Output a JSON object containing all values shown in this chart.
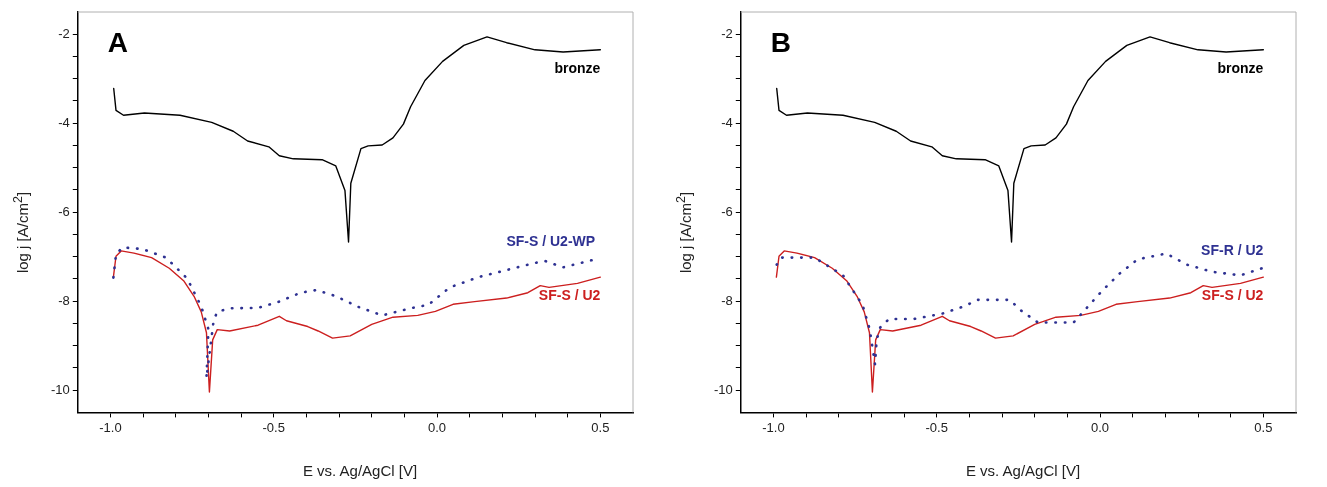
{
  "chart_data": [
    {
      "type": "line",
      "title": "A",
      "xlabel": "E vs. Ag/AgCl [V]",
      "ylabel": "log j [A/cm$^{2}$]",
      "grid": false,
      "legend": false,
      "marker": "none",
      "xlim": [
        -1.1,
        0.6
      ],
      "ylim": [
        -10.5,
        -1.5
      ],
      "xticks": [
        {
          "value": -1.0,
          "label": "-1.0"
        },
        {
          "value": -0.9,
          "label": null
        },
        {
          "value": -0.8,
          "label": null
        },
        {
          "value": -0.7,
          "label": null
        },
        {
          "value": -0.6,
          "label": null
        },
        {
          "value": -0.5,
          "label": "-0.5"
        },
        {
          "value": -0.4,
          "label": null
        },
        {
          "value": -0.3,
          "label": null
        },
        {
          "value": -0.2,
          "label": null
        },
        {
          "value": -0.1,
          "label": null
        },
        {
          "value": 0,
          "label": "0.0"
        },
        {
          "value": 0.1,
          "label": null
        },
        {
          "value": 0.2,
          "label": null
        },
        {
          "value": 0.3,
          "label": null
        },
        {
          "value": 0.4,
          "label": null
        },
        {
          "value": 0.5,
          "label": "0.5"
        }
      ],
      "yticks": [
        -10,
        {
          "value": -9.5,
          "label": null
        },
        {
          "value": -9,
          "label": null
        },
        {
          "value": -8.5,
          "label": null
        },
        -8,
        {
          "value": -7.5,
          "label": null
        },
        {
          "value": -7,
          "label": null
        },
        {
          "value": -6.5,
          "label": null
        },
        -6,
        {
          "value": -5.5,
          "label": null
        },
        {
          "value": -5,
          "label": null
        },
        {
          "value": -4.5,
          "label": null
        },
        -4,
        {
          "value": -3.5,
          "label": null
        },
        {
          "value": -3,
          "label": null
        },
        {
          "value": -2.5,
          "label": null
        },
        -2
      ],
      "series": [
        {
          "name": "bronze",
          "color": "#000000",
          "line_style": "solid",
          "x": [
            -0.99,
            -0.983,
            -0.96,
            -0.896,
            -0.787,
            -0.69,
            -0.624,
            -0.58,
            -0.515,
            -0.483,
            -0.44,
            -0.352,
            -0.31,
            -0.282,
            -0.271,
            -0.264,
            -0.233,
            -0.211,
            -0.168,
            -0.135,
            -0.103,
            -0.081,
            -0.037,
            0.017,
            0.082,
            0.153,
            0.213,
            0.3,
            0.386,
            0.5
          ],
          "values": [
            -3.22,
            -3.71,
            -3.82,
            -3.77,
            -3.82,
            -3.98,
            -4.18,
            -4.4,
            -4.53,
            -4.73,
            -4.8,
            -4.82,
            -4.96,
            -5.51,
            -6.67,
            -5.35,
            -4.57,
            -4.51,
            -4.49,
            -4.33,
            -4.02,
            -3.63,
            -3.04,
            -2.61,
            -2.25,
            -2.06,
            -2.19,
            -2.35,
            -2.4,
            -2.35
          ]
        },
        {
          "name": "SF-S / U2-WP",
          "color": "#2e3192",
          "line_style": "dotted",
          "x": [
            -0.991,
            -0.983,
            -0.963,
            -0.901,
            -0.83,
            -0.765,
            -0.722,
            -0.7,
            -0.706,
            -0.684,
            -0.673,
            -0.635,
            -0.548,
            -0.483,
            -0.418,
            -0.369,
            -0.309,
            -0.244,
            -0.168,
            -0.081,
            -0.026,
            0.039,
            0.126,
            0.213,
            0.3,
            0.332,
            0.386,
            0.484
          ],
          "values": [
            -7.47,
            -6.95,
            -6.79,
            -6.83,
            -7.02,
            -7.49,
            -8.12,
            -8.63,
            -9.73,
            -8.43,
            -8.24,
            -8.16,
            -8.15,
            -8.01,
            -7.81,
            -7.75,
            -7.89,
            -8.12,
            -8.32,
            -8.16,
            -8.08,
            -7.69,
            -7.46,
            -7.3,
            -7.14,
            -7.1,
            -7.24,
            -7.06
          ]
        },
        {
          "name": "SF-S / U2",
          "color": "#cc1f1f",
          "line_style": "solid",
          "x": [
            -0.991,
            -0.983,
            -0.967,
            -0.928,
            -0.874,
            -0.82,
            -0.776,
            -0.744,
            -0.722,
            -0.706,
            -0.697,
            -0.687,
            -0.673,
            -0.635,
            -0.548,
            -0.483,
            -0.461,
            -0.396,
            -0.364,
            -0.32,
            -0.266,
            -0.2,
            -0.135,
            -0.059,
            -0.005,
            0.049,
            0.115,
            0.213,
            0.278,
            0.316,
            0.343,
            0.43,
            0.5
          ],
          "values": [
            -7.46,
            -6.99,
            -6.87,
            -6.92,
            -7.02,
            -7.26,
            -7.54,
            -7.89,
            -8.24,
            -8.71,
            -10.04,
            -8.87,
            -8.64,
            -8.67,
            -8.54,
            -8.34,
            -8.44,
            -8.57,
            -8.67,
            -8.83,
            -8.78,
            -8.52,
            -8.36,
            -8.32,
            -8.23,
            -8.07,
            -8.01,
            -7.93,
            -7.81,
            -7.65,
            -7.69,
            -7.6,
            -7.46
          ]
        }
      ]
    },
    {
      "type": "line",
      "title": "B",
      "xlabel": "E vs. Ag/AgCl [V]",
      "ylabel": "log j [A/cm$^{2}$]",
      "grid": false,
      "legend": false,
      "marker": "none",
      "xlim": [
        -1.1,
        0.6
      ],
      "ylim": [
        -10.5,
        -1.5
      ],
      "xticks": [
        {
          "value": -1.0,
          "label": "-1.0"
        },
        {
          "value": -0.9,
          "label": null
        },
        {
          "value": -0.8,
          "label": null
        },
        {
          "value": -0.7,
          "label": null
        },
        {
          "value": -0.6,
          "label": null
        },
        {
          "value": -0.5,
          "label": "-0.5"
        },
        {
          "value": -0.4,
          "label": null
        },
        {
          "value": -0.3,
          "label": null
        },
        {
          "value": -0.2,
          "label": null
        },
        {
          "value": -0.1,
          "label": null
        },
        {
          "value": 0,
          "label": "0.0"
        },
        {
          "value": 0.1,
          "label": null
        },
        {
          "value": 0.2,
          "label": null
        },
        {
          "value": 0.3,
          "label": null
        },
        {
          "value": 0.4,
          "label": null
        },
        {
          "value": 0.5,
          "label": "0.5"
        }
      ],
      "yticks": [
        -10,
        {
          "value": -9.5,
          "label": null
        },
        {
          "value": -9,
          "label": null
        },
        {
          "value": -8.5,
          "label": null
        },
        -8,
        {
          "value": -7.5,
          "label": null
        },
        {
          "value": -7,
          "label": null
        },
        {
          "value": -6.5,
          "label": null
        },
        -6,
        {
          "value": -5.5,
          "label": null
        },
        {
          "value": -5,
          "label": null
        },
        {
          "value": -4.5,
          "label": null
        },
        -4,
        {
          "value": -3.5,
          "label": null
        },
        {
          "value": -3,
          "label": null
        },
        {
          "value": -2.5,
          "label": null
        },
        -2
      ],
      "series": [
        {
          "name": "bronze",
          "color": "#000000",
          "line_style": "solid",
          "x": [
            -0.99,
            -0.983,
            -0.96,
            -0.896,
            -0.787,
            -0.69,
            -0.624,
            -0.58,
            -0.515,
            -0.483,
            -0.44,
            -0.352,
            -0.31,
            -0.282,
            -0.271,
            -0.264,
            -0.233,
            -0.211,
            -0.168,
            -0.135,
            -0.103,
            -0.081,
            -0.037,
            0.017,
            0.082,
            0.153,
            0.213,
            0.3,
            0.386,
            0.5
          ],
          "values": [
            -3.22,
            -3.71,
            -3.82,
            -3.77,
            -3.82,
            -3.98,
            -4.18,
            -4.4,
            -4.53,
            -4.73,
            -4.8,
            -4.82,
            -4.96,
            -5.51,
            -6.67,
            -5.35,
            -4.57,
            -4.51,
            -4.49,
            -4.33,
            -4.02,
            -3.63,
            -3.04,
            -2.61,
            -2.25,
            -2.06,
            -2.19,
            -2.35,
            -2.4,
            -2.35
          ]
        },
        {
          "name": "SF-R / U2",
          "color": "#2e3192",
          "line_style": "dotted",
          "x": [
            -0.99,
            -0.977,
            -0.874,
            -0.787,
            -0.727,
            -0.705,
            -0.689,
            -0.684,
            -0.673,
            -0.646,
            -0.57,
            -0.483,
            -0.418,
            -0.374,
            -0.276,
            -0.244,
            -0.19,
            -0.081,
            -0.037,
            0.006,
            0.06,
            0.115,
            0.202,
            0.267,
            0.343,
            0.43,
            0.5
          ],
          "values": [
            -7.18,
            -7.02,
            -7.02,
            -7.42,
            -8.09,
            -8.64,
            -9.42,
            -8.87,
            -8.59,
            -8.4,
            -8.4,
            -8.28,
            -8.12,
            -7.97,
            -7.97,
            -8.2,
            -8.48,
            -8.48,
            -8.12,
            -7.77,
            -7.38,
            -7.06,
            -6.93,
            -7.18,
            -7.34,
            -7.42,
            -7.25
          ]
        },
        {
          "name": "SF-S / U2",
          "color": "#cc1f1f",
          "line_style": "solid",
          "x": [
            -0.991,
            -0.983,
            -0.967,
            -0.928,
            -0.874,
            -0.82,
            -0.776,
            -0.744,
            -0.722,
            -0.706,
            -0.697,
            -0.687,
            -0.673,
            -0.635,
            -0.548,
            -0.483,
            -0.461,
            -0.396,
            -0.364,
            -0.32,
            -0.266,
            -0.2,
            -0.135,
            -0.059,
            -0.005,
            0.049,
            0.115,
            0.213,
            0.278,
            0.316,
            0.343,
            0.43,
            0.5
          ],
          "values": [
            -7.46,
            -6.99,
            -6.87,
            -6.92,
            -7.02,
            -7.26,
            -7.54,
            -7.89,
            -8.24,
            -8.71,
            -10.04,
            -8.87,
            -8.64,
            -8.67,
            -8.54,
            -8.34,
            -8.44,
            -8.57,
            -8.67,
            -8.83,
            -8.78,
            -8.52,
            -8.36,
            -8.32,
            -8.23,
            -8.07,
            -8.01,
            -7.93,
            -7.81,
            -7.65,
            -7.69,
            -7.6,
            -7.46
          ]
        }
      ]
    }
  ]
}
